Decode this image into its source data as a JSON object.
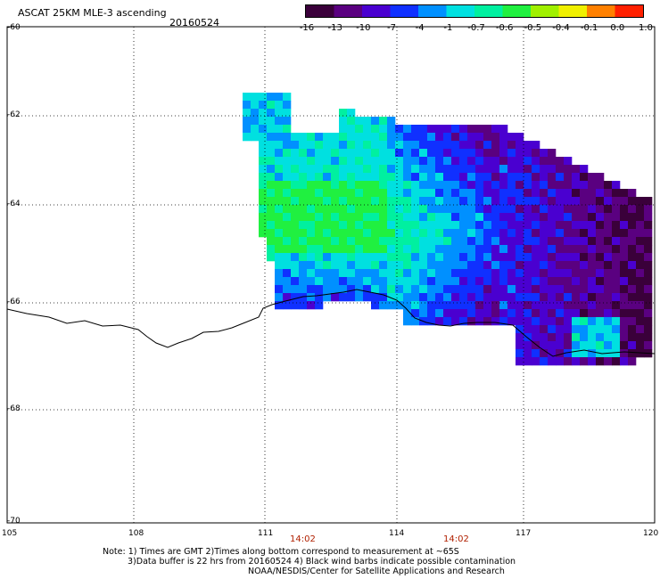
{
  "title": "ASCAT 25KM MLE-3 ascending",
  "date": "20160524",
  "colorbar": {
    "labels": [
      "-16",
      "-13",
      "-10",
      "-7",
      "-4",
      "-1",
      "-0.7",
      "-0.6",
      "-0.5",
      "-0.4",
      "-0.1",
      "0.0",
      "1.0"
    ],
    "colors": [
      "#3a003a",
      "#5a0080",
      "#4a00d0",
      "#1030ff",
      "#0090ff",
      "#00e0e0",
      "#00f0a0",
      "#20f040",
      "#a0f000",
      "#f0f000",
      "#ff8000",
      "#ff2000"
    ]
  },
  "map": {
    "lat_labels": [
      "-60",
      "-62",
      "-64",
      "-66",
      "-68",
      "-70"
    ],
    "lon_labels": [
      "105",
      "108",
      "111",
      "114",
      "117",
      "120"
    ],
    "times": [
      "14:02",
      "14:02"
    ]
  },
  "notes": [
    "Note: 1) Times are GMT 2)Times along bottom correspond to measurement at ~65S",
    "3)Data buffer is 22 hrs from 20160524 4) Black wind barbs indicate possible contamination",
    "NOAA/NESDIS/Center for Satellite Applications and Research"
  ]
}
